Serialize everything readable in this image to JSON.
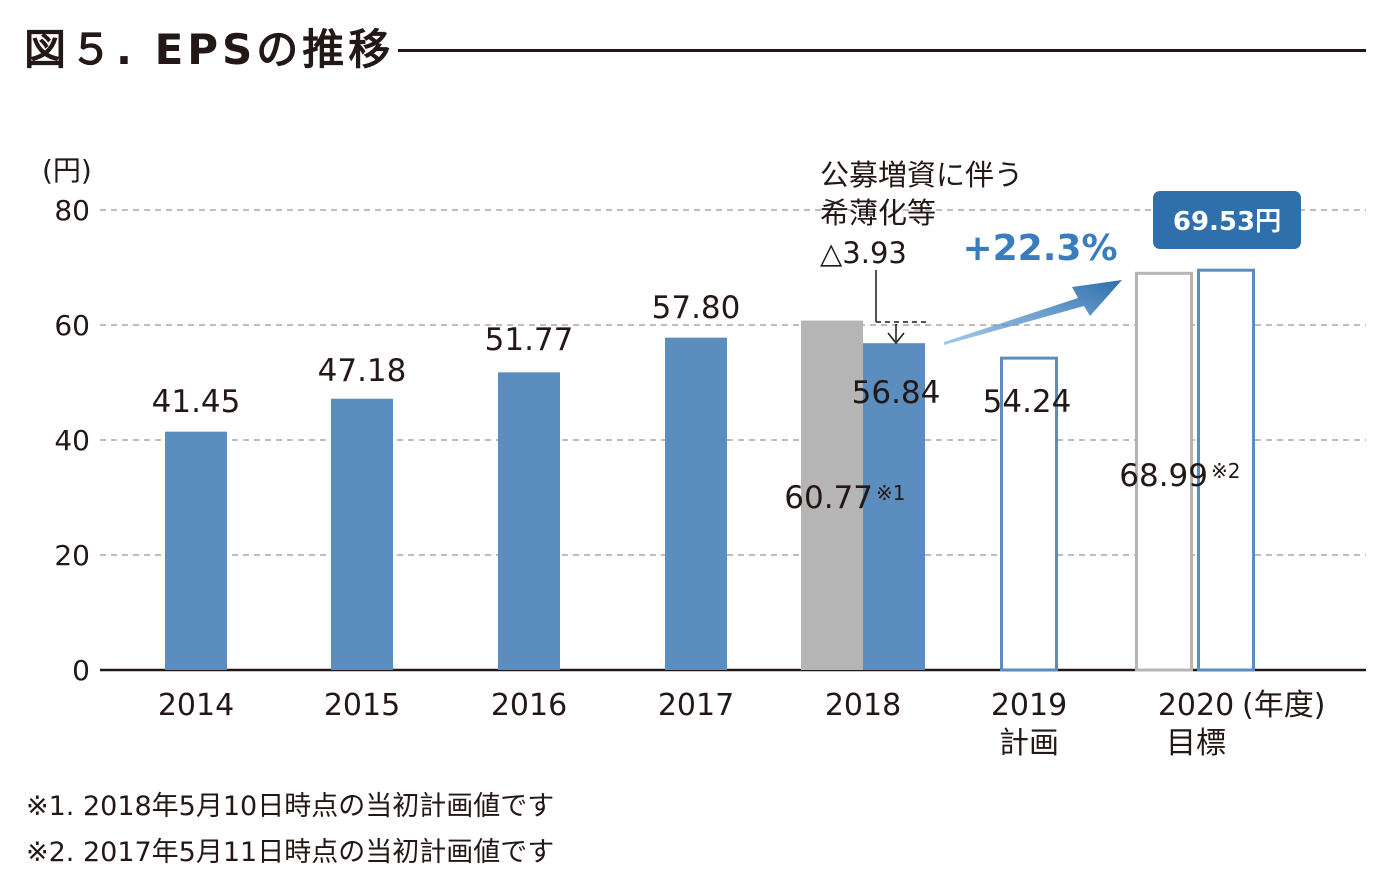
{
  "title": "図５. EPSの推移",
  "chart_data": {
    "type": "bar",
    "title": "図５. EPSの推移",
    "ylabel": "(円)",
    "xlabel": "(年度)",
    "ylim": [
      0,
      80
    ],
    "yticks": [
      0,
      20,
      40,
      60,
      80
    ],
    "grid": true,
    "categories": [
      "2014",
      "2015",
      "2016",
      "2017",
      "2018",
      "2019",
      "2020"
    ],
    "category_sublabels": [
      "",
      "",
      "",
      "",
      "",
      "計画",
      "目標"
    ],
    "series": [
      {
        "values": [
          41.45,
          47.18,
          51.77,
          57.8,
          56.84,
          54.24,
          69.53
        ],
        "labels": [
          "41.45",
          "47.18",
          "51.77",
          "57.80",
          "56.84",
          "54.24",
          "69.53円"
        ]
      },
      {
        "values": [
          null,
          null,
          null,
          null,
          60.77,
          null,
          68.99
        ],
        "labels": [
          "",
          "",
          "",
          "",
          "60.77",
          "",
          "68.99"
        ],
        "notes": [
          "",
          "",
          "",
          "",
          "※1",
          "",
          "※2"
        ]
      }
    ],
    "annotations": [
      {
        "lines": [
          "公募増資に伴う",
          "希薄化等",
          "△3.93"
        ]
      },
      {
        "text": "+22.3%"
      }
    ]
  },
  "notes": [
    "※1. 2018年5月10日時点の当初計画値です",
    "※2. 2017年5月11日時点の当初計画値です"
  ],
  "colors": {
    "actual": "#5b8ebf",
    "initial_plan": "#b5b5b5",
    "plan_outline": "#5b8ebf",
    "accent": "#3a7dbf",
    "target_badge": "#2f6fac",
    "grid": "#a8a8a8",
    "text": "#231815"
  }
}
